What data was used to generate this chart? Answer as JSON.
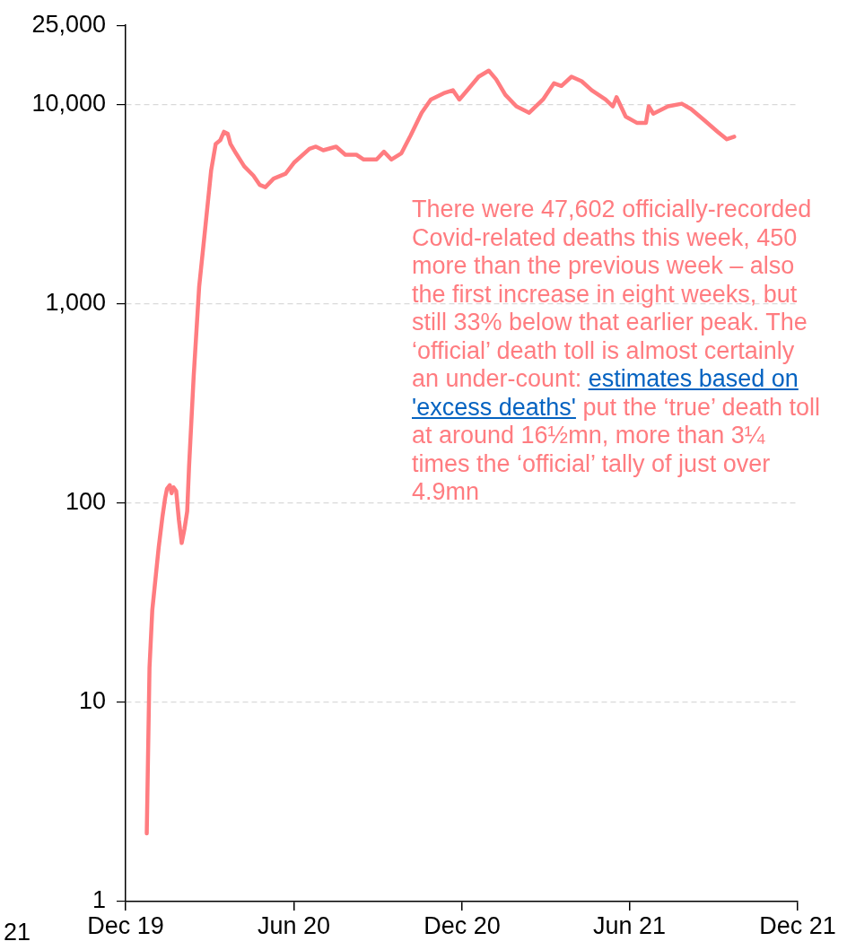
{
  "chart_data": {
    "type": "line",
    "log": "y",
    "grid": "y",
    "legend": false,
    "marker": "none",
    "line_style": "solid",
    "xlim": [
      "2019-12-01",
      "2021-12-01"
    ],
    "xticks": [
      {
        "value": "2019-12-01",
        "label": "Dec 19"
      },
      {
        "value": "2020-06-01",
        "label": "Jun 20"
      },
      {
        "value": "2020-12-01",
        "label": "Dec 20"
      },
      {
        "value": "2021-06-01",
        "label": "Jun 21"
      },
      {
        "value": "2021-12-01",
        "label": "Dec 21"
      }
    ],
    "ylim": [
      1,
      25000
    ],
    "yticks": [
      {
        "value": 1,
        "label": "1"
      },
      {
        "value": 10,
        "label": "10"
      },
      {
        "value": 100,
        "label": "100"
      },
      {
        "value": 1000,
        "label": "1,000"
      },
      {
        "value": 10000,
        "label": "10,000"
      },
      {
        "value": 25000,
        "label": "25,000"
      }
    ],
    "x": [
      "2019-12-24",
      "2019-12-27",
      "2019-12-30",
      "2020-01-03",
      "2020-01-06",
      "2020-01-10",
      "2020-01-13",
      "2020-01-15",
      "2020-01-18",
      "2020-01-20",
      "2020-01-22",
      "2020-01-25",
      "2020-01-28",
      "2020-01-31",
      "2020-02-03",
      "2020-02-06",
      "2020-02-08",
      "2020-02-13",
      "2020-02-19",
      "2020-02-26",
      "2020-03-03",
      "2020-03-08",
      "2020-03-13",
      "2020-03-17",
      "2020-03-21",
      "2020-03-24",
      "2020-03-30",
      "2020-04-08",
      "2020-04-18",
      "2020-04-25",
      "2020-05-01",
      "2020-05-10",
      "2020-05-23",
      "2020-06-01",
      "2020-06-18",
      "2020-06-25",
      "2020-07-03",
      "2020-07-17",
      "2020-07-27",
      "2020-08-08",
      "2020-08-16",
      "2020-08-30",
      "2020-09-07",
      "2020-09-15",
      "2020-09-26",
      "2020-10-06",
      "2020-10-18",
      "2020-10-28",
      "2020-11-11",
      "2020-11-21",
      "2020-11-28",
      "2020-12-08",
      "2020-12-19",
      "2020-12-30",
      "2021-01-07",
      "2021-01-17",
      "2021-01-29",
      "2021-02-12",
      "2021-02-27",
      "2021-03-11",
      "2021-03-19",
      "2021-03-30",
      "2021-04-10",
      "2021-04-21",
      "2021-05-06",
      "2021-05-14",
      "2021-05-18",
      "2021-05-28",
      "2021-06-09",
      "2021-06-19",
      "2021-06-22",
      "2021-06-27",
      "2021-07-13",
      "2021-07-28",
      "2021-08-07",
      "2021-08-22",
      "2021-09-05",
      "2021-09-15",
      "2021-09-23"
    ],
    "series": [
      {
        "color": "#ff7c80",
        "values": [
          2.2,
          15,
          29,
          44,
          60,
          85,
          106,
          118,
          123,
          112,
          120,
          115,
          82,
          63,
          74,
          91,
          152,
          430,
          1220,
          2500,
          4660,
          6350,
          6630,
          7300,
          7150,
          6350,
          5700,
          4900,
          4400,
          3950,
          3850,
          4250,
          4500,
          5100,
          6000,
          6150,
          5900,
          6150,
          5600,
          5600,
          5300,
          5300,
          5800,
          5300,
          5700,
          7000,
          9100,
          10600,
          11400,
          11800,
          10600,
          12000,
          13800,
          14800,
          13400,
          11200,
          9800,
          9100,
          10600,
          12800,
          12400,
          13800,
          13100,
          11800,
          10600,
          9800,
          10900,
          8700,
          8100,
          8100,
          9800,
          9000,
          9800,
          10100,
          9500,
          8300,
          7300,
          6700,
          6900
        ]
      }
    ],
    "annotations": [
      "There were 47,602 officially-recorded Covid-related deaths this week, 450 more than the previous week – also the first increase in eight weeks, but still 33% below that earlier peak. The ‘official’ death toll is almost certainly an under-count: ",
      "estimates based on 'excess deaths'",
      " put the ‘true’ death toll at around 16½mn, more than 3¼ times the ‘official’ tally of just over 4.9mn",
      "21"
    ]
  }
}
